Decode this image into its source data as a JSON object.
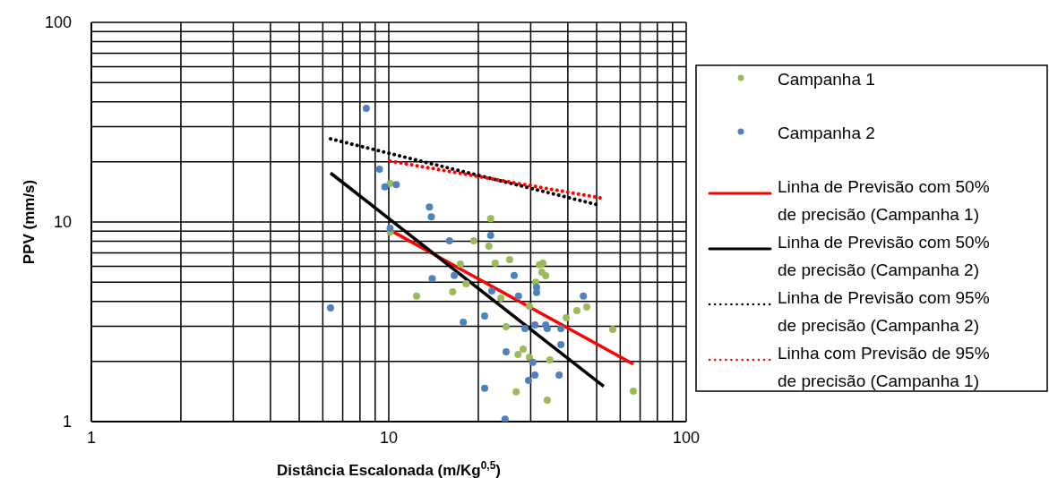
{
  "chart_data": {
    "type": "scatter",
    "xlabel": "Distância Escalonada (m/Kg$^{0,5}$)",
    "ylabel": "PPV (mm/s)",
    "log": "xy",
    "grid": true,
    "legend": "right",
    "xlim": [
      1,
      100
    ],
    "ylim": [
      1,
      100
    ],
    "xticks": [
      1,
      {
        "value": 2,
        "label": null
      },
      {
        "value": 3,
        "label": null
      },
      {
        "value": 4,
        "label": null
      },
      {
        "value": 5,
        "label": null
      },
      {
        "value": 6,
        "label": null
      },
      {
        "value": 7,
        "label": null
      },
      {
        "value": 8,
        "label": null
      },
      {
        "value": 9,
        "label": null
      },
      10,
      {
        "value": 20,
        "label": null
      },
      {
        "value": 30,
        "label": null
      },
      {
        "value": 40,
        "label": null
      },
      {
        "value": 50,
        "label": null
      },
      {
        "value": 60,
        "label": null
      },
      {
        "value": 70,
        "label": null
      },
      {
        "value": 80,
        "label": null
      },
      {
        "value": 90,
        "label": null
      },
      100
    ],
    "yticks": [
      1,
      {
        "value": 2,
        "label": null
      },
      {
        "value": 3,
        "label": null
      },
      {
        "value": 4,
        "label": null
      },
      {
        "value": 5,
        "label": null
      },
      {
        "value": 6,
        "label": null
      },
      {
        "value": 7,
        "label": null
      },
      {
        "value": 8,
        "label": null
      },
      {
        "value": 9,
        "label": null
      },
      10,
      {
        "value": 20,
        "label": null
      },
      {
        "value": 30,
        "label": null
      },
      {
        "value": 40,
        "label": null
      },
      {
        "value": 50,
        "label": null
      },
      {
        "value": 60,
        "label": null
      },
      {
        "value": 70,
        "label": null
      },
      {
        "value": 80,
        "label": null
      },
      {
        "value": 90,
        "label": null
      },
      100
    ],
    "series": [
      {
        "name": "Campanha 1",
        "marker": "circle",
        "color": "#9bbb59",
        "x": [
          10.1,
          10.1,
          12.4,
          16.4,
          17.4,
          18.2,
          22.0,
          19.3,
          21.7,
          22.8,
          25.5,
          32.1,
          33.0,
          32.7,
          33.7,
          31.2,
          23.8,
          29.7,
          46.3,
          42.9,
          39.5,
          56.6,
          24.8,
          28.3,
          27.2,
          29.7,
          34.8,
          26.8,
          34.1,
          66.4
        ],
        "values": [
          15.6,
          8.9,
          4.25,
          4.47,
          6.15,
          4.9,
          10.4,
          8.05,
          7.57,
          6.22,
          6.48,
          6.1,
          6.22,
          5.61,
          5.38,
          5.0,
          4.16,
          3.79,
          3.75,
          3.6,
          3.31,
          2.9,
          2.99,
          2.31,
          2.17,
          2.1,
          2.04,
          1.41,
          1.28,
          1.42
        ]
      },
      {
        "name": "Campanha 2",
        "marker": "circle",
        "color": "#4f81bd",
        "x": [
          6.37,
          8.4,
          9.3,
          9.7,
          10.6,
          10.1,
          13.7,
          13.9,
          16.0,
          14.0,
          16.6,
          17.8,
          22.0,
          22.2,
          26.4,
          27.3,
          31.4,
          31.4,
          45.1,
          21.0,
          31.0,
          28.7,
          33.7,
          34.1,
          37.9,
          37.9,
          24.8,
          30.5,
          31.0,
          37.4,
          29.5,
          21.0,
          24.6
        ],
        "values": [
          3.71,
          37.1,
          18.4,
          15.0,
          15.4,
          9.3,
          11.9,
          10.6,
          8.05,
          5.2,
          5.4,
          3.15,
          8.57,
          4.52,
          5.4,
          4.25,
          4.7,
          4.43,
          4.25,
          3.38,
          3.05,
          2.93,
          3.05,
          2.93,
          2.93,
          2.43,
          2.24,
          1.98,
          1.71,
          1.71,
          1.61,
          1.47,
          1.03
        ]
      },
      {
        "name": "Linha de Previsão com 50% de precisão (Campanha 1)",
        "type": "line",
        "line_style": "solid",
        "color": "#ff0000",
        "x": [
          10.1,
          66.4
        ],
        "values": [
          9.1,
          1.94
        ]
      },
      {
        "name": "Linha de Previsão com 50% de precisão (Campanha 2)",
        "type": "line",
        "line_style": "solid",
        "color": "#000000",
        "x": [
          6.37,
          52.8
        ],
        "values": [
          17.6,
          1.5
        ]
      },
      {
        "name": "Linha de Previsão com 95% de precisão (Campanha 2)",
        "type": "line",
        "line_style": "dotted",
        "color": "#000000",
        "x": [
          6.37,
          50.3
        ],
        "values": [
          26.1,
          12.2
        ]
      },
      {
        "name": "Linha com Previsão de 95% de precisão (Campanha 1)",
        "type": "line",
        "line_style": "dotted",
        "color": "#ff0000",
        "x": [
          10.1,
          53.2
        ],
        "values": [
          20.2,
          13.1
        ]
      }
    ]
  }
}
